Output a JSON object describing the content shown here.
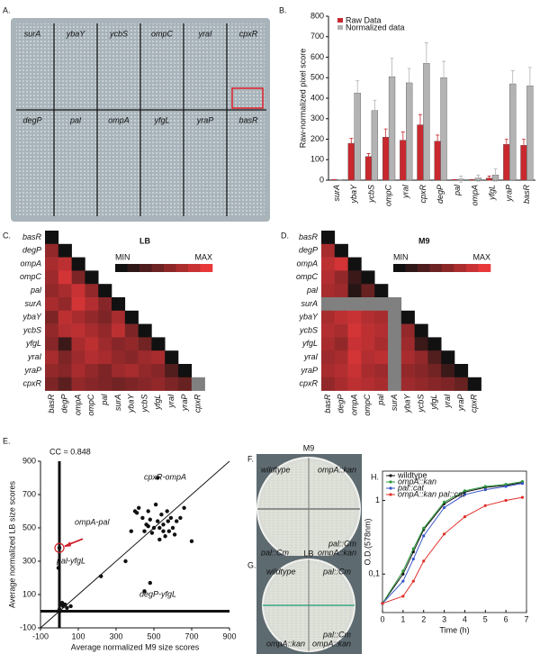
{
  "chart_data": [
    {
      "type": "bar",
      "panel_label": "B.",
      "ylabel": "Raw-normalized pixel score",
      "categories": [
        "surA",
        "ybaY",
        "ycbS",
        "ompC",
        "yraI",
        "cpxR",
        "degP",
        "pal",
        "ompA",
        "yfgL",
        "yraP",
        "basR"
      ],
      "series": [
        {
          "name": "Raw Data",
          "color": "#c8282e",
          "values": [
            3,
            180,
            115,
            210,
            195,
            270,
            190,
            3,
            3,
            10,
            175,
            170
          ],
          "errors": [
            0,
            25,
            15,
            40,
            40,
            50,
            30,
            0,
            0,
            10,
            25,
            30
          ]
        },
        {
          "name": "Normalized data",
          "color": "#b3b3b3",
          "values": [
            3,
            425,
            340,
            505,
            475,
            570,
            500,
            5,
            10,
            25,
            470,
            460
          ],
          "errors": [
            0,
            60,
            50,
            90,
            70,
            100,
            80,
            15,
            15,
            30,
            65,
            90
          ]
        }
      ],
      "ylim": [
        0,
        800
      ],
      "yticks": [
        0,
        100,
        200,
        300,
        400,
        500,
        600,
        700,
        800
      ]
    },
    {
      "type": "heatmap",
      "panel_label": "C.",
      "title": "LB",
      "min_label": "MIN",
      "max_label": "MAX",
      "colors": [
        "#111111",
        "#e8383a"
      ],
      "missing_color": "#808080",
      "vlim": [
        0,
        1
      ],
      "categories": [
        "basR",
        "degP",
        "ompA",
        "ompC",
        "pal",
        "surA",
        "ybaY",
        "ycbS",
        "yfgL",
        "yraI",
        "yraP",
        "cpxR"
      ],
      "values": [
        [
          0
        ],
        [
          0.6,
          0
        ],
        [
          0.7,
          0.8,
          0
        ],
        [
          0.65,
          0.9,
          0.5,
          0
        ],
        [
          0.6,
          0.7,
          0.85,
          0.6,
          0
        ],
        [
          0.7,
          0.6,
          0.9,
          0.75,
          0.55,
          0
        ],
        [
          0.5,
          0.8,
          0.7,
          0.6,
          0.5,
          0.7,
          0
        ],
        [
          0.6,
          0.75,
          0.8,
          0.7,
          0.6,
          0.8,
          0.5,
          0
        ],
        [
          0.55,
          0.2,
          0.7,
          0.8,
          0.65,
          0.55,
          0.6,
          0.45,
          0
        ],
        [
          0.7,
          0.5,
          0.65,
          0.75,
          0.7,
          0.6,
          0.55,
          0.65,
          0.7,
          0
        ],
        [
          0.6,
          0.55,
          0.7,
          0.6,
          0.5,
          0.65,
          0.7,
          0.6,
          0.55,
          0.3,
          0
        ],
        [
          0.5,
          0.35,
          0.6,
          0.55,
          0.5,
          0.45,
          0.5,
          0.55,
          0.6,
          0.5,
          0.4,
          null
        ]
      ]
    },
    {
      "type": "heatmap",
      "panel_label": "D.",
      "title": "M9",
      "min_label": "MIN",
      "max_label": "MAX",
      "colors": [
        "#111111",
        "#e8383a"
      ],
      "missing_color": "#808080",
      "vlim": [
        0,
        1
      ],
      "categories": [
        "basR",
        "degP",
        "ompA",
        "ompC",
        "pal",
        "surA",
        "ybaY",
        "ycbS",
        "yfgL",
        "yraI",
        "yraP",
        "cpxR"
      ],
      "values": [
        [
          0
        ],
        [
          0.7,
          0
        ],
        [
          0.8,
          0.9,
          0
        ],
        [
          0.75,
          0.6,
          0.2,
          0
        ],
        [
          0.7,
          0.65,
          0.1,
          0.4,
          0
        ],
        [
          null,
          null,
          null,
          null,
          null,
          null
        ],
        [
          0.7,
          0.8,
          0.85,
          0.75,
          0.7,
          null,
          0
        ],
        [
          0.75,
          0.7,
          0.9,
          0.8,
          0.75,
          null,
          0.6,
          0
        ],
        [
          0.7,
          0.6,
          0.85,
          0.8,
          0.7,
          null,
          0.65,
          0.2,
          0
        ],
        [
          0.65,
          0.7,
          0.9,
          0.75,
          0.8,
          null,
          0.7,
          0.6,
          0.3,
          0
        ],
        [
          0.7,
          0.75,
          0.85,
          0.7,
          0.65,
          null,
          0.6,
          0.55,
          0.45,
          0.2,
          0
        ],
        [
          0.6,
          0.7,
          0.8,
          0.75,
          0.7,
          null,
          0.65,
          0.6,
          0.55,
          0.5,
          0.4,
          0
        ]
      ]
    },
    {
      "type": "scatter",
      "panel_label": "E.",
      "xlabel": "Average normalized M9 size scores",
      "ylabel": "Average normalized LB size scores",
      "annotations": [
        "CC = 0.848",
        "cpxR-ompA",
        "ompA-pal",
        "pal-yfgL",
        "degP-yfgL"
      ],
      "color": "#111111",
      "x": [
        0,
        10,
        20,
        -5,
        30,
        40,
        60,
        5,
        15,
        0,
        350,
        380,
        400,
        420,
        440,
        450,
        460,
        470,
        480,
        490,
        500,
        510,
        520,
        530,
        540,
        550,
        560,
        570,
        580,
        590,
        600,
        610,
        620,
        640,
        660,
        700,
        450,
        480,
        520,
        550,
        410,
        530,
        575,
        470,
        220
      ],
      "y": [
        10,
        40,
        30,
        260,
        40,
        20,
        30,
        0,
        50,
        380,
        300,
        480,
        600,
        620,
        560,
        480,
        520,
        600,
        550,
        470,
        500,
        640,
        540,
        500,
        580,
        520,
        450,
        600,
        480,
        560,
        500,
        460,
        540,
        560,
        620,
        420,
        120,
        170,
        800,
        480,
        590,
        430,
        540,
        510,
        210
      ],
      "xlim": [
        -100,
        900
      ],
      "ylim": [
        -100,
        900
      ],
      "xticks": [
        -100,
        100,
        300,
        500,
        700,
        900
      ],
      "yticks": [
        -100,
        100,
        300,
        500,
        700,
        900
      ]
    },
    {
      "type": "line",
      "panel_label": "H.",
      "xlabel": "Time (h)",
      "ylabel": "O.D.(578nm)",
      "yscale": "log",
      "x": [
        0,
        1,
        1.5,
        2,
        3,
        4,
        5,
        6,
        6.8
      ],
      "series": [
        {
          "name": "wildtype",
          "color": "#111111",
          "values": [
            0.04,
            0.1,
            0.2,
            0.4,
            0.9,
            1.3,
            1.5,
            1.6,
            1.75
          ]
        },
        {
          "name": "ompA::kan",
          "color": "#2e9a3e",
          "values": [
            0.04,
            0.11,
            0.22,
            0.42,
            0.95,
            1.35,
            1.55,
            1.65,
            1.8
          ]
        },
        {
          "name": "pal::cat",
          "color": "#3a55c8",
          "values": [
            0.04,
            0.08,
            0.16,
            0.33,
            0.8,
            1.2,
            1.4,
            1.55,
            1.7
          ]
        },
        {
          "name": "ompA::kan pal::cat",
          "color": "#e0302a",
          "values": [
            0.04,
            0.05,
            0.08,
            0.15,
            0.35,
            0.6,
            0.85,
            1.0,
            1.1
          ]
        }
      ],
      "xlim": [
        0,
        7
      ],
      "xticks": [
        0,
        1,
        2,
        3,
        4,
        5,
        6,
        7
      ],
      "ylim": [
        0.03,
        2.5
      ],
      "yticks": [
        {
          "value": 0.1,
          "label": "0,1"
        },
        1
      ]
    }
  ],
  "photos": [
    {
      "panel_label": "A.",
      "top_row": [
        "surA",
        "ybaY",
        "ycbS",
        "ompC",
        "yraI",
        "cpxR"
      ],
      "bottom_row": [
        "degP",
        "pal",
        "ompA",
        "yfgL",
        "yraP",
        "basR"
      ]
    },
    {
      "panel_label": "F.",
      "title": "M9",
      "labels": [
        "wildtype",
        "ompA::kan",
        "pal::Cm",
        "ompA::kan",
        "pal::Cm"
      ]
    },
    {
      "panel_label": "G.",
      "title": "LB",
      "labels": [
        "wildtype",
        "pal::Cm",
        "pal::Cm",
        "ompA::kan",
        "ompA::kan"
      ]
    }
  ]
}
